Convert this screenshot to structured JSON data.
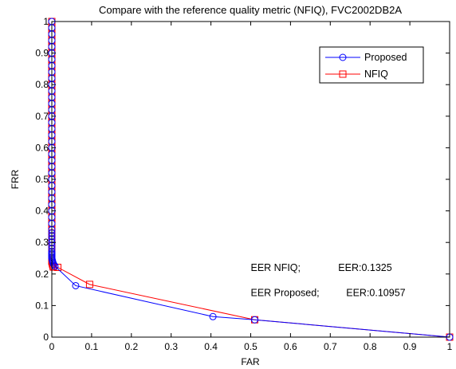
{
  "chart_data": {
    "type": "line",
    "title": "Compare with the reference quality metric (NFIQ), FVC2002DB2A",
    "xlabel": "FAR",
    "ylabel": "FRR",
    "xlim": [
      0,
      1
    ],
    "ylim": [
      0,
      1
    ],
    "xticks": [
      0,
      0.1,
      0.2,
      0.3,
      0.4,
      0.5,
      0.6,
      0.7,
      0.8,
      0.9,
      1
    ],
    "yticks": [
      0,
      0.1,
      0.2,
      0.3,
      0.4,
      0.5,
      0.6,
      0.7,
      0.8,
      0.9,
      1
    ],
    "xtick_labels": [
      "0",
      "0.1",
      "0.2",
      "0.3",
      "0.4",
      "0.5",
      "0.6",
      "0.7",
      "0.8",
      "0.9",
      "1"
    ],
    "ytick_labels": [
      "0",
      "0.1",
      "0.2",
      "0.3",
      "0.4",
      "0.5",
      "0.6",
      "0.7",
      "0.8",
      "0.9",
      "1"
    ],
    "grid": false,
    "legend_position": "top-right",
    "series": [
      {
        "name": "Proposed",
        "color": "#0000ff",
        "marker": "circle",
        "x": [
          0,
          0,
          0,
          0,
          0,
          0,
          0,
          0,
          0,
          0,
          0,
          0,
          0,
          0,
          0,
          0,
          0,
          0,
          0,
          0,
          0,
          0,
          0,
          0,
          0,
          0,
          0,
          0,
          0,
          0,
          0,
          0,
          0,
          0,
          0,
          0,
          0,
          0,
          0,
          0,
          0,
          0,
          0,
          0,
          0,
          0.001,
          0.002,
          0.003,
          0.005,
          0.008,
          0.06,
          0.405,
          0.51,
          1
        ],
        "y": [
          1,
          0.98,
          0.96,
          0.94,
          0.92,
          0.9,
          0.88,
          0.86,
          0.84,
          0.82,
          0.8,
          0.78,
          0.76,
          0.74,
          0.72,
          0.7,
          0.68,
          0.66,
          0.64,
          0.62,
          0.6,
          0.58,
          0.56,
          0.54,
          0.52,
          0.5,
          0.48,
          0.46,
          0.44,
          0.42,
          0.4,
          0.38,
          0.36,
          0.34,
          0.33,
          0.32,
          0.31,
          0.3,
          0.29,
          0.28,
          0.27,
          0.265,
          0.26,
          0.255,
          0.25,
          0.245,
          0.24,
          0.235,
          0.23,
          0.225,
          0.163,
          0.065,
          0.055,
          0
        ]
      },
      {
        "name": "NFIQ",
        "color": "#ff0000",
        "marker": "square",
        "x": [
          0,
          0,
          0,
          0,
          0,
          0,
          0,
          0,
          0,
          0,
          0,
          0,
          0,
          0,
          0,
          0,
          0,
          0,
          0,
          0,
          0,
          0,
          0,
          0,
          0,
          0,
          0,
          0,
          0,
          0,
          0,
          0,
          0,
          0,
          0,
          0,
          0,
          0,
          0,
          0,
          0,
          0,
          0,
          0,
          0,
          0.001,
          0.002,
          0.003,
          0.004,
          0.015,
          0.095,
          0.51,
          1
        ],
        "y": [
          1,
          0.98,
          0.96,
          0.94,
          0.92,
          0.9,
          0.88,
          0.86,
          0.84,
          0.82,
          0.8,
          0.78,
          0.76,
          0.74,
          0.72,
          0.7,
          0.68,
          0.66,
          0.64,
          0.62,
          0.6,
          0.58,
          0.56,
          0.54,
          0.52,
          0.5,
          0.48,
          0.46,
          0.44,
          0.42,
          0.4,
          0.38,
          0.36,
          0.34,
          0.33,
          0.32,
          0.31,
          0.3,
          0.29,
          0.28,
          0.27,
          0.26,
          0.25,
          0.245,
          0.24,
          0.235,
          0.23,
          0.225,
          0.222,
          0.221,
          0.167,
          0.055,
          0
        ]
      }
    ],
    "annotations": [
      {
        "text": "EER NFIQ;",
        "x": 0.5,
        "y": 0.21
      },
      {
        "text": "EER:0.1325",
        "x": 0.72,
        "y": 0.21
      },
      {
        "text": "EER Proposed;",
        "x": 0.5,
        "y": 0.13
      },
      {
        "text": "EER:0.10957",
        "x": 0.74,
        "y": 0.13
      }
    ]
  }
}
